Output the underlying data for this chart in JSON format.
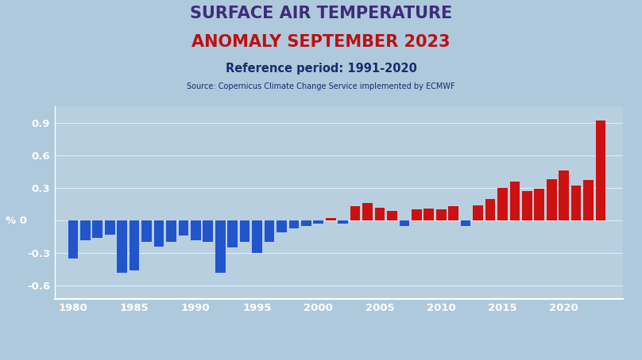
{
  "title_line1": "SURFACE AIR TEMPERATURE",
  "title_line2": "ANOMALY SEPTEMBER 2023",
  "subtitle": "Reference period: 1991-2020",
  "source": "Source: Copernicus Climate Change Service implemented by ECMWF",
  "years": [
    1980,
    1981,
    1982,
    1983,
    1984,
    1985,
    1986,
    1987,
    1988,
    1989,
    1990,
    1991,
    1992,
    1993,
    1994,
    1995,
    1996,
    1997,
    1998,
    1999,
    2000,
    2001,
    2002,
    2003,
    2004,
    2005,
    2006,
    2007,
    2008,
    2009,
    2010,
    2011,
    2012,
    2013,
    2014,
    2015,
    2016,
    2017,
    2018,
    2019,
    2020,
    2021,
    2022,
    2023
  ],
  "values": [
    -0.35,
    -0.18,
    -0.16,
    -0.13,
    -0.48,
    -0.46,
    -0.2,
    -0.24,
    -0.2,
    -0.14,
    -0.18,
    -0.2,
    -0.48,
    -0.25,
    -0.2,
    -0.3,
    -0.2,
    -0.11,
    -0.07,
    -0.05,
    -0.03,
    0.02,
    -0.03,
    0.13,
    0.16,
    0.12,
    0.09,
    -0.05,
    0.1,
    0.11,
    0.1,
    0.13,
    -0.05,
    0.14,
    0.2,
    0.3,
    0.36,
    0.27,
    0.29,
    0.38,
    0.46,
    0.32,
    0.37,
    0.92
  ],
  "color_positive": "#cc1111",
  "color_negative": "#2255cc",
  "bg_color": "#aec8dc",
  "chart_bg": [
    1.0,
    1.0,
    1.0,
    0.12
  ],
  "title_color1": "#3d2d7a",
  "title_color2": "#bb1111",
  "subtitle_color": "#1a2a6c",
  "source_color": "#1a2a6c",
  "tick_color": "white",
  "grid_color": "white",
  "ylim": [
    -0.72,
    1.05
  ],
  "yticks": [
    -0.6,
    -0.3,
    0.0,
    0.3,
    0.6,
    0.9
  ],
  "xticks": [
    1980,
    1985,
    1990,
    1995,
    2000,
    2005,
    2010,
    2015,
    2020
  ],
  "xlim": [
    1978.5,
    2024.8
  ]
}
